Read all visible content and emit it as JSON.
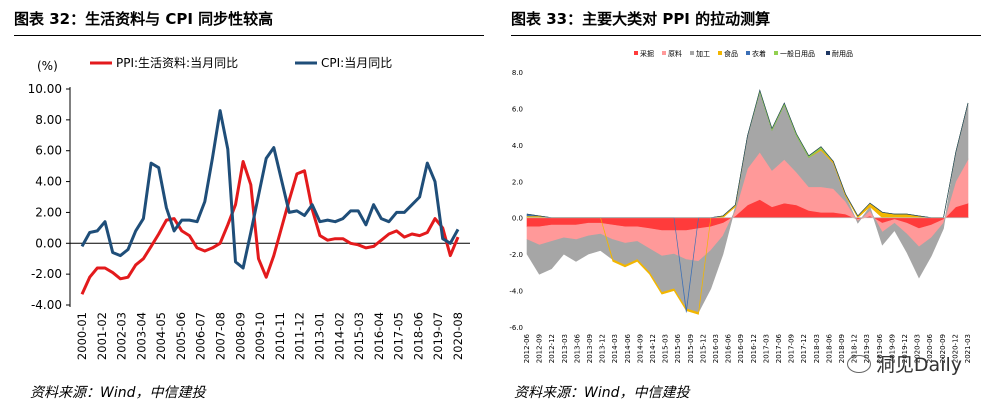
{
  "left": {
    "title": "图表 32：生活资料与 CPI 同步性较高",
    "source": "资料来源：Wind，中信建投"
  },
  "right": {
    "title": "图表 33：主要大类对 PPI 的拉动测算",
    "source": "资料来源：Wind，中信建投"
  },
  "watermark": {
    "text": "洞见Daily"
  },
  "chart_data": [
    {
      "type": "line",
      "title": "",
      "unit_label": "(%)",
      "ylim": [
        -4,
        10
      ],
      "yticks": [
        "-4.00",
        "-2.00",
        "0.00",
        "2.00",
        "4.00",
        "6.00",
        "8.00",
        "10.00"
      ],
      "ytick_values": [
        -4,
        -2,
        0,
        2,
        4,
        6,
        8,
        10
      ],
      "grid": false,
      "legend_position": "top",
      "x_start": "2000-01",
      "x_step_months": 6,
      "x_tick_labels": [
        "2000-01",
        "2001-02",
        "2002-03",
        "2003-04",
        "2004-05",
        "2005-06",
        "2006-07",
        "2007-08",
        "2008-09",
        "2009-10",
        "2010-11",
        "2011-12",
        "2013-01",
        "2014-02",
        "2015-03",
        "2016-04",
        "2017-05",
        "2018-06",
        "2019-07",
        "2020-08"
      ],
      "series": [
        {
          "name": "PPI:生活资料:当月同比",
          "color": "#e31a1c",
          "values": [
            -3.3,
            -2.2,
            -1.6,
            -1.6,
            -1.9,
            -2.3,
            -2.2,
            -1.4,
            -1.0,
            -0.2,
            0.6,
            1.5,
            1.6,
            0.8,
            0.5,
            -0.3,
            -0.5,
            -0.3,
            0.0,
            1.2,
            2.5,
            5.3,
            3.8,
            -1.0,
            -2.2,
            -0.8,
            1.0,
            2.8,
            4.5,
            4.7,
            2.2,
            0.5,
            0.2,
            0.3,
            0.3,
            0.0,
            -0.1,
            -0.3,
            -0.2,
            0.2,
            0.6,
            0.8,
            0.4,
            0.6,
            0.5,
            0.7,
            1.6,
            1.0,
            -0.8,
            0.4
          ]
        },
        {
          "name": "CPI:当月同比",
          "color": "#1f4e79",
          "values": [
            -0.2,
            0.7,
            0.8,
            1.4,
            -0.6,
            -0.8,
            -0.4,
            0.8,
            1.6,
            5.2,
            4.9,
            2.3,
            0.8,
            1.5,
            1.5,
            1.4,
            2.7,
            5.5,
            8.6,
            6.1,
            -1.2,
            -1.6,
            0.7,
            3.1,
            5.5,
            6.2,
            4.1,
            2.0,
            2.1,
            1.8,
            2.5,
            1.4,
            1.5,
            1.4,
            1.6,
            2.1,
            2.1,
            1.2,
            2.5,
            1.6,
            1.4,
            2.0,
            2.0,
            2.5,
            3.0,
            5.2,
            4.0,
            0.3,
            0.0,
            0.9
          ]
        }
      ]
    },
    {
      "type": "area",
      "title": "",
      "ylim": [
        -6,
        8
      ],
      "yticks": [
        "-6.0",
        "-4.0",
        "-2.0",
        "0.0",
        "2.0",
        "4.0",
        "6.0",
        "8.0"
      ],
      "ytick_values": [
        -6,
        -4,
        -2,
        0,
        2,
        4,
        6,
        8
      ],
      "grid": false,
      "legend_position": "top",
      "x_start": "2012-06",
      "x_step_months": 3,
      "x_tick_labels": [
        "2012-06",
        "2012-09",
        "2012-12",
        "2013-03",
        "2013-06",
        "2013-09",
        "2013-12",
        "2014-03",
        "2014-06",
        "2014-09",
        "2014-12",
        "2015-03",
        "2015-06",
        "2015-09",
        "2015-12",
        "2016-03",
        "2016-06",
        "2016-09",
        "2016-12",
        "2017-03",
        "2017-06",
        "2017-09",
        "2017-12",
        "2018-03",
        "2018-06",
        "2018-09",
        "2018-12",
        "2019-03",
        "2019-06",
        "2019-09",
        "2019-12",
        "2020-03",
        "2020-06",
        "2020-09",
        "2020-12",
        "2021-03"
      ],
      "series": [
        {
          "name": "采掘",
          "color": "#ff3b3b",
          "values": [
            -0.5,
            -0.5,
            -0.4,
            -0.4,
            -0.4,
            -0.3,
            -0.3,
            -0.4,
            -0.5,
            -0.5,
            -0.6,
            -0.7,
            -0.7,
            -0.7,
            -0.6,
            -0.5,
            -0.3,
            0.1,
            0.7,
            1.0,
            0.6,
            0.8,
            0.7,
            0.4,
            0.3,
            0.3,
            0.2,
            -0.1,
            0.1,
            -0.3,
            -0.1,
            -0.3,
            -0.6,
            -0.4,
            -0.1,
            0.6,
            0.8
          ]
        },
        {
          "name": "原料",
          "color": "#ff9999",
          "values": [
            -0.7,
            -1.0,
            -0.9,
            -0.7,
            -0.8,
            -0.7,
            -0.6,
            -0.8,
            -0.9,
            -0.8,
            -1.1,
            -1.4,
            -1.3,
            -1.6,
            -1.8,
            -1.3,
            -0.7,
            0.3,
            2.0,
            2.6,
            2.0,
            2.4,
            1.8,
            1.3,
            1.4,
            1.3,
            0.7,
            -0.1,
            0.3,
            -0.5,
            -0.2,
            -0.6,
            -1.0,
            -0.7,
            -0.2,
            1.4,
            2.4
          ]
        },
        {
          "name": "加工",
          "color": "#a6a6a6",
          "values": [
            -0.8,
            -1.6,
            -1.5,
            -0.9,
            -1.2,
            -1.0,
            -0.9,
            -1.1,
            -1.2,
            -1.0,
            -1.3,
            -2.0,
            -1.9,
            -2.7,
            -2.8,
            -2.1,
            -1.0,
            0.2,
            1.8,
            3.3,
            2.2,
            3.0,
            2.0,
            1.6,
            2.0,
            1.4,
            0.3,
            -0.1,
            0.2,
            -0.7,
            -0.4,
            -1.0,
            -1.7,
            -1.0,
            -0.3,
            1.6,
            3.1
          ]
        },
        {
          "name": "食品",
          "color": "#f2b600",
          "values": [
            0.1,
            0.1,
            0.0,
            0.0,
            0.0,
            0.0,
            0.0,
            -0.1,
            -0.1,
            -0.1,
            -0.1,
            -0.1,
            -0.1,
            -0.1,
            -0.1,
            0.0,
            0.1,
            0.1,
            0.0,
            0.0,
            0.0,
            0.0,
            0.0,
            0.0,
            0.1,
            0.1,
            0.1,
            0.1,
            0.2,
            0.3,
            0.2,
            0.2,
            0.1,
            0.0,
            0.0,
            0.0,
            0.0
          ]
        },
        {
          "name": "衣着",
          "color": "#3b6fb6",
          "values": [
            0.1,
            0.0,
            0.0,
            0.0,
            0.0,
            0.0,
            0.0,
            0.0,
            0.0,
            0.0,
            0.0,
            0.0,
            0.0,
            -0.1,
            0.0,
            0.0,
            0.0,
            0.0,
            0.0,
            0.0,
            0.0,
            0.0,
            0.0,
            0.0,
            0.0,
            0.0,
            0.0,
            0.0,
            0.0,
            0.0,
            0.0,
            0.0,
            0.0,
            0.0,
            0.0,
            0.0,
            0.0
          ]
        },
        {
          "name": "一般日用品",
          "color": "#92d050",
          "values": [
            0.0,
            0.0,
            0.0,
            0.0,
            0.0,
            0.0,
            0.0,
            0.0,
            0.0,
            0.0,
            0.0,
            0.0,
            0.0,
            0.0,
            0.0,
            0.0,
            0.0,
            0.0,
            0.0,
            0.1,
            0.1,
            0.1,
            0.1,
            0.1,
            0.1,
            0.0,
            0.0,
            0.0,
            0.0,
            0.0,
            0.0,
            0.0,
            0.0,
            0.0,
            0.0,
            0.0,
            0.0
          ]
        },
        {
          "name": "耐用品",
          "color": "#1f3864",
          "values": [
            0.0,
            0.0,
            0.0,
            0.0,
            0.0,
            0.0,
            0.0,
            0.0,
            0.0,
            0.0,
            0.0,
            0.0,
            0.0,
            0.0,
            0.0,
            0.0,
            0.0,
            0.0,
            0.0,
            0.0,
            0.0,
            0.0,
            0.0,
            0.0,
            0.0,
            0.0,
            0.0,
            0.0,
            0.0,
            0.0,
            0.0,
            0.0,
            0.0,
            0.0,
            0.0,
            0.0,
            0.0
          ]
        }
      ]
    }
  ]
}
